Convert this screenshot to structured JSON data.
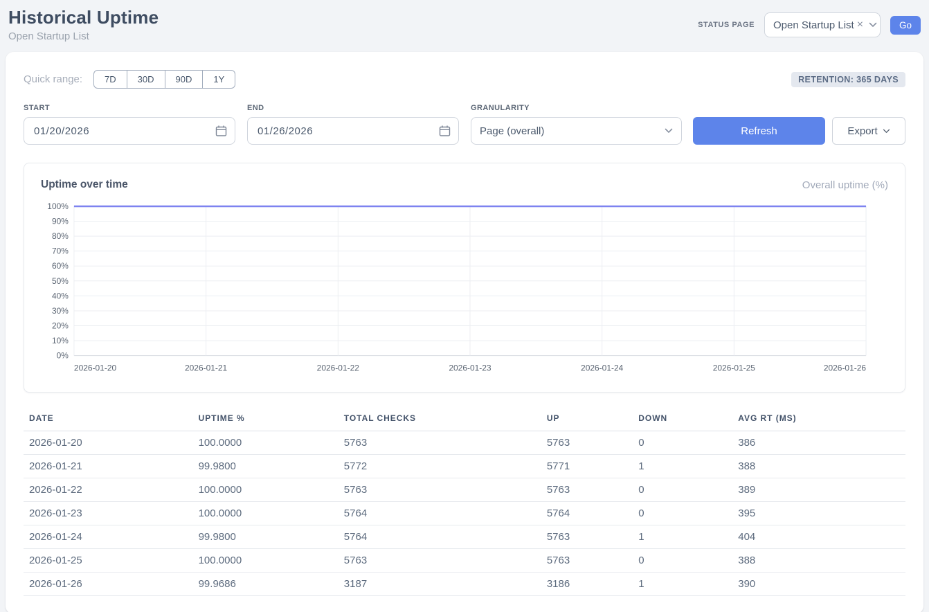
{
  "page": {
    "title": "Historical Uptime",
    "subtitle": "Open Startup List"
  },
  "header": {
    "status_page_label": "STATUS PAGE",
    "status_page_value": "Open Startup List",
    "clear_icon": "×",
    "go_label": "Go"
  },
  "filters": {
    "quick_range_label": "Quick range:",
    "quick_ranges": [
      "7D",
      "30D",
      "90D",
      "1Y"
    ],
    "retention_badge": "RETENTION: 365 DAYS",
    "start_label": "START",
    "start_value": "01/20/2026",
    "end_label": "END",
    "end_value": "01/26/2026",
    "granularity_label": "GRANULARITY",
    "granularity_value": "Page (overall)",
    "refresh_label": "Refresh",
    "export_label": "Export"
  },
  "chart": {
    "title": "Uptime over time",
    "legend": "Overall uptime (%)"
  },
  "chart_data": {
    "type": "line",
    "title": "Uptime over time",
    "categories": [
      "2026-01-20",
      "2026-01-21",
      "2026-01-22",
      "2026-01-23",
      "2026-01-24",
      "2026-01-25",
      "2026-01-26"
    ],
    "series": [
      {
        "name": "Overall uptime (%)",
        "values": [
          100.0,
          99.98,
          100.0,
          100.0,
          99.98,
          100.0,
          99.9686
        ]
      }
    ],
    "ylim": [
      0,
      100
    ],
    "y_ticks": [
      0,
      10,
      20,
      30,
      40,
      50,
      60,
      70,
      80,
      90,
      100
    ],
    "y_tick_suffix": "%",
    "grid": true,
    "legend_position": "top-right",
    "line_color": "#7e83f0"
  },
  "table": {
    "columns": [
      "DATE",
      "UPTIME %",
      "TOTAL CHECKS",
      "UP",
      "DOWN",
      "AVG RT (MS)"
    ],
    "rows": [
      [
        "2026-01-20",
        "100.0000",
        "5763",
        "5763",
        "0",
        "386"
      ],
      [
        "2026-01-21",
        "99.9800",
        "5772",
        "5771",
        "1",
        "388"
      ],
      [
        "2026-01-22",
        "100.0000",
        "5763",
        "5763",
        "0",
        "389"
      ],
      [
        "2026-01-23",
        "100.0000",
        "5764",
        "5764",
        "0",
        "395"
      ],
      [
        "2026-01-24",
        "99.9800",
        "5764",
        "5763",
        "1",
        "404"
      ],
      [
        "2026-01-25",
        "100.0000",
        "5763",
        "5763",
        "0",
        "388"
      ],
      [
        "2026-01-26",
        "99.9686",
        "3187",
        "3186",
        "1",
        "390"
      ]
    ]
  }
}
